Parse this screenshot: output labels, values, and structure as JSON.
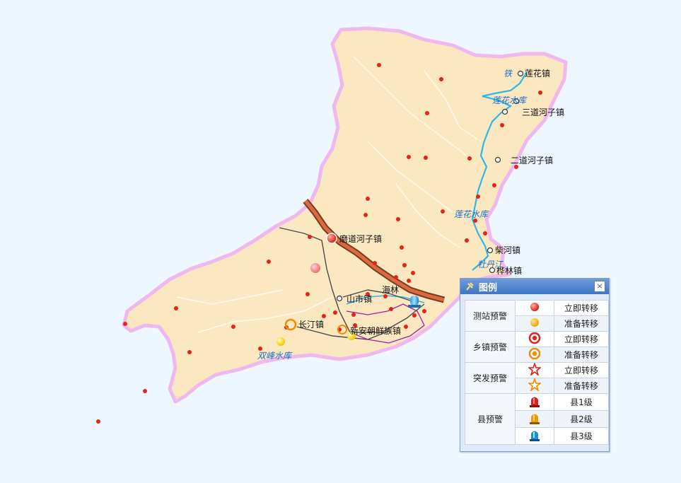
{
  "map": {
    "towns": {
      "lianhua": "莲花镇",
      "sandao": "三道河子镇",
      "erdao": "二道河子镇",
      "chaihe": "柴河镇",
      "hualin": "桦林镇",
      "modao": "磨道河子镇",
      "shanshi": "山市镇",
      "hailin": "海林",
      "changting": "长汀镇",
      "xinan": "新安朝鲜族镇"
    },
    "water": {
      "lianhua_top": "莲花水库",
      "lianhua_mid": "莲花水库",
      "tie": "铁",
      "mudan": "牡丹江",
      "shuangfeng": "双峰水库"
    },
    "colors": {
      "land": "#fce8c0",
      "border": "#f0b8f0",
      "river": "#2cb8e8",
      "dot": "#e8201a",
      "road": "#4a4a4a"
    }
  },
  "legend": {
    "title": "图例",
    "close": "×",
    "groups": [
      {
        "category": "测站预警",
        "rows": [
          {
            "icon": "red-ball-icon",
            "label": "立即转移"
          },
          {
            "icon": "orange-ball-icon",
            "label": "准备转移"
          }
        ]
      },
      {
        "category": "乡镇预警",
        "rows": [
          {
            "icon": "red-ring-icon",
            "label": "立即转移"
          },
          {
            "icon": "orange-ring-icon",
            "label": "准备转移"
          }
        ]
      },
      {
        "category": "突发预警",
        "rows": [
          {
            "icon": "red-star-icon",
            "label": "立即转移"
          },
          {
            "icon": "orange-star-icon",
            "label": "准备转移"
          }
        ]
      },
      {
        "category": "县预警",
        "rows": [
          {
            "icon": "red-siren-icon",
            "label": "县1级"
          },
          {
            "icon": "orange-siren-icon",
            "label": "县2级"
          },
          {
            "icon": "blue-siren-icon",
            "label": "县3级"
          }
        ]
      }
    ]
  }
}
